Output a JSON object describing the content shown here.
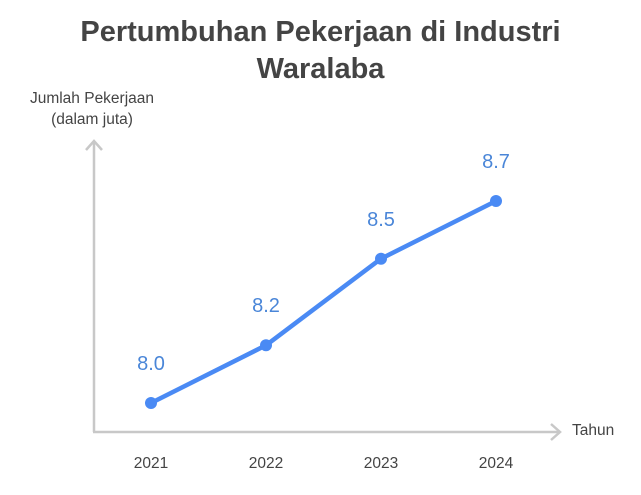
{
  "chart_data": {
    "type": "line",
    "title": "Pertumbuhan Pekerjaan di Industri Waralaba",
    "title_lines": [
      "Pertumbuhan Pekerjaan di Industri",
      "Waralaba"
    ],
    "xlabel": "Tahun",
    "ylabel": "Jumlah Pekerjaan (dalam juta)",
    "ylabel_lines": [
      "Jumlah Pekerjaan",
      "(dalam juta)"
    ],
    "categories": [
      "2021",
      "2022",
      "2023",
      "2024"
    ],
    "values": [
      8.0,
      8.2,
      8.5,
      8.7
    ],
    "value_labels": [
      "8.0",
      "8.2",
      "8.5",
      "8.7"
    ],
    "series": [
      {
        "name": "Jumlah Pekerjaan",
        "values": [
          8.0,
          8.2,
          8.5,
          8.7
        ],
        "color": "#4a8af4"
      }
    ],
    "grid": false,
    "legend": "none",
    "ylim": [
      7.8,
      8.9
    ]
  },
  "colors": {
    "line": "#4a8af4",
    "label": "#4a86d8",
    "axis": "#c8c8c8",
    "text": "#444444"
  }
}
